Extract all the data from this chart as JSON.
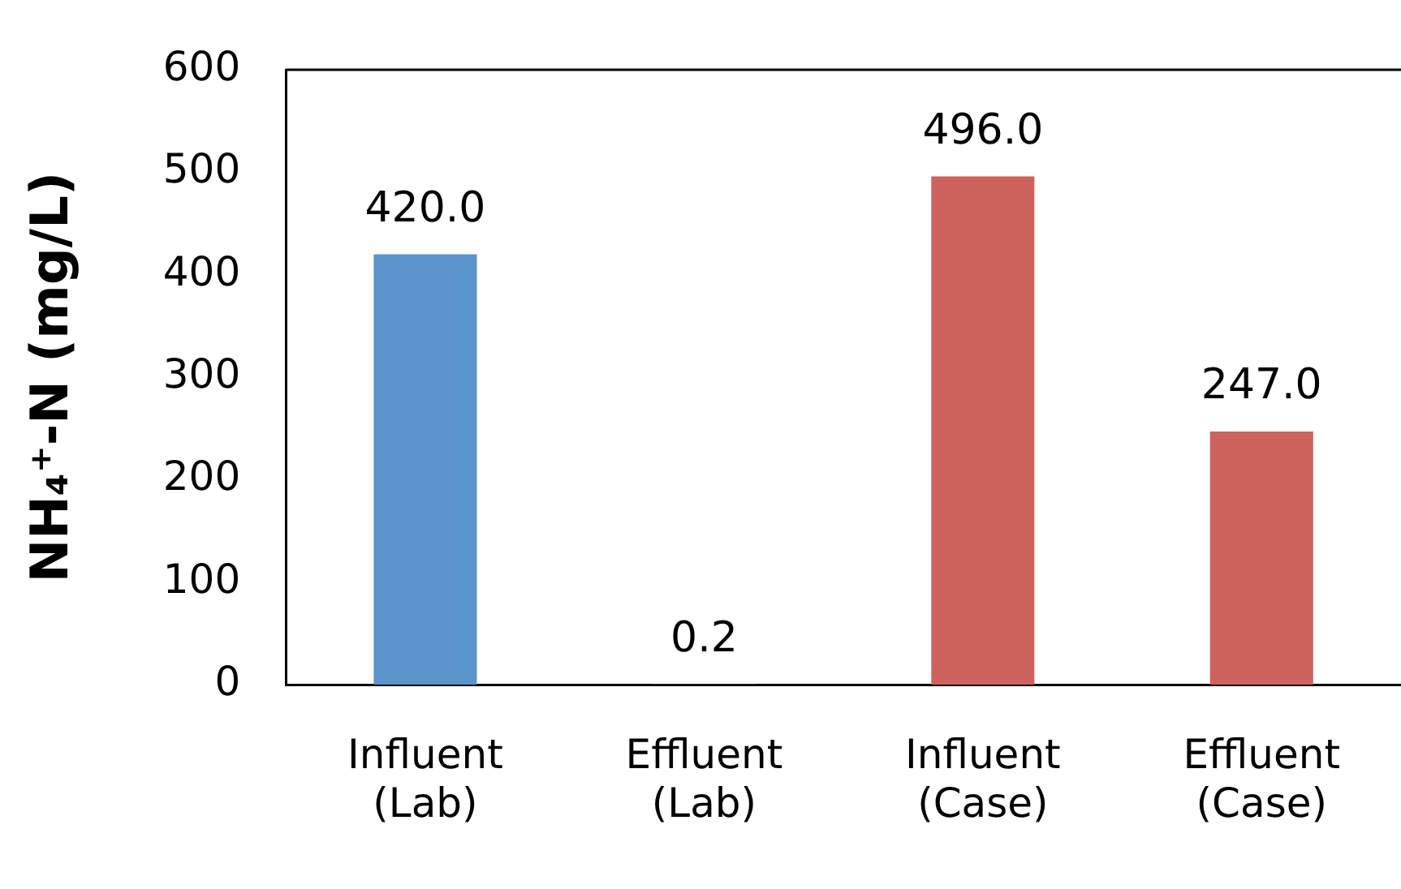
{
  "chart_data": {
    "type": "bar",
    "ylabel": "NH₄⁺-N (mg/L)",
    "categories": [
      "Influent (Lab)",
      "Effluent (Lab)",
      "Influent (Case)",
      "Effluent (Case)"
    ],
    "values": [
      420.0,
      0.2,
      496.0,
      247.0
    ],
    "value_labels": [
      "420.0",
      "0.2",
      "496.0",
      "247.0"
    ],
    "colors": [
      "#5b94cb",
      "#5b94cb",
      "#cd635c",
      "#cd635c"
    ],
    "ylim": [
      0,
      600
    ],
    "yticks": [
      0,
      100,
      200,
      300,
      400,
      500,
      600
    ],
    "grid": false,
    "legend": false
  }
}
